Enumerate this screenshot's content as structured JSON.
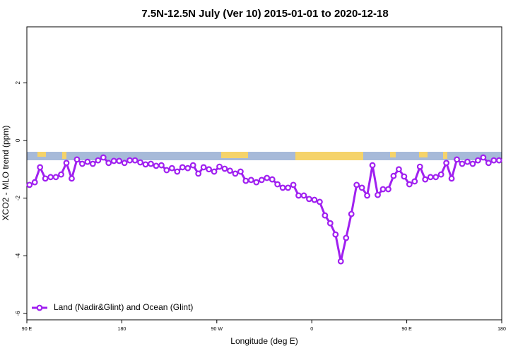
{
  "chart_data": {
    "type": "line",
    "title": "7.5N-12.5N July (Ver 10)   2015-01-01 to 2020-12-18",
    "xlabel": "Longitude (deg E)",
    "ylabel": "XCO2 - MLO trend (ppm)",
    "x": [
      92.5,
      97.5,
      102.5,
      107.5,
      112.5,
      117.5,
      122.5,
      127.5,
      132.5,
      137.5,
      142.5,
      147.5,
      152.5,
      157.5,
      162.5,
      167.5,
      172.5,
      177.5,
      182.5,
      187.5,
      192.5,
      197.5,
      202.5,
      207.5,
      212.5,
      217.5,
      222.5,
      227.5,
      232.5,
      237.5,
      242.5,
      247.5,
      252.5,
      257.5,
      262.5,
      267.5,
      272.5,
      277.5,
      282.5,
      287.5,
      292.5,
      297.5,
      302.5,
      307.5,
      312.5,
      317.5,
      322.5,
      327.5,
      332.5,
      337.5,
      342.5,
      347.5,
      352.5,
      357.5,
      362.5,
      367.5,
      372.5,
      377.5,
      382.5,
      387.5,
      392.5,
      397.5,
      402.5,
      407.5,
      412.5,
      417.5,
      422.5,
      427.5,
      432.5,
      437.5,
      442.5,
      447.5,
      452.5,
      457.5,
      462.5,
      467.5,
      472.5,
      477.5,
      482.5,
      487.5,
      492.5,
      497.5,
      502.5,
      507.5,
      512.5,
      517.5,
      522.5,
      527.5,
      532.5,
      537.5
    ],
    "series": [
      {
        "name": "Land (Nadir&Glint) and Ocean (Glint)",
        "color": "#a020f0",
        "values": [
          -1.54,
          -1.45,
          -0.93,
          -1.32,
          -1.27,
          -1.27,
          -1.18,
          -0.78,
          -1.32,
          -0.66,
          -0.81,
          -0.74,
          -0.81,
          -0.69,
          -0.59,
          -0.78,
          -0.71,
          -0.71,
          -0.78,
          -0.69,
          -0.69,
          -0.76,
          -0.83,
          -0.81,
          -0.88,
          -0.86,
          -1.03,
          -0.96,
          -1.08,
          -0.93,
          -0.96,
          -0.86,
          -1.15,
          -0.93,
          -1.0,
          -1.08,
          -0.91,
          -0.98,
          -1.05,
          -1.15,
          -1.08,
          -1.4,
          -1.37,
          -1.45,
          -1.37,
          -1.3,
          -1.35,
          -1.52,
          -1.64,
          -1.64,
          -1.54,
          -1.91,
          -1.91,
          -2.03,
          -2.06,
          -2.13,
          -2.6,
          -2.87,
          -3.26,
          -4.19,
          -3.38,
          -2.55,
          -1.54,
          -1.64,
          -1.91,
          -0.86,
          -1.89,
          -1.69,
          -1.69,
          -1.23,
          -1.0,
          -1.25,
          -1.52,
          -1.42,
          -0.91,
          -1.35,
          -1.27,
          -1.27,
          -1.18,
          -0.78,
          -1.32,
          -0.66,
          -0.81,
          -0.74,
          -0.81,
          -0.69,
          -0.59,
          -0.78,
          -0.69,
          -0.69
        ]
      }
    ],
    "xlim": [
      90,
      540
    ],
    "ylim": [
      -6.22,
      3.94
    ],
    "xticks": [
      {
        "value": 90,
        "label": "90 E"
      },
      180,
      {
        "value": 270,
        "label": "90 W"
      },
      {
        "value": 360,
        "label": "0"
      },
      {
        "value": 450,
        "label": "90 E"
      },
      {
        "value": 540,
        "label": "180"
      }
    ],
    "yticks": [
      -6,
      -4,
      -2,
      0,
      2
    ],
    "legend": "bottom-left",
    "grid": false
  }
}
